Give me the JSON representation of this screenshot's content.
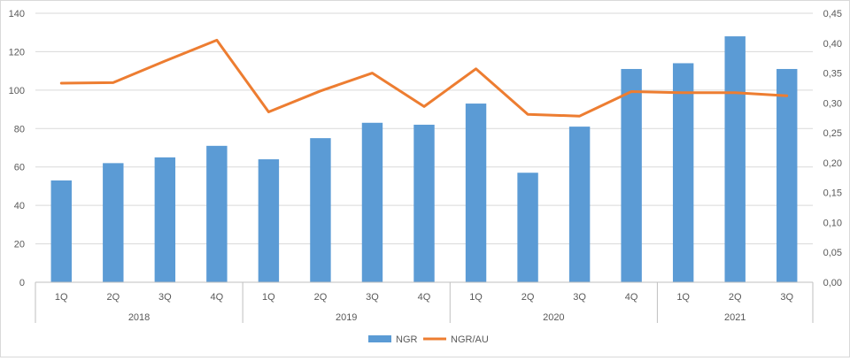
{
  "chart_data": {
    "type": "bar",
    "groups": [
      {
        "label": "2018",
        "quarters": [
          "1Q",
          "2Q",
          "3Q",
          "4Q"
        ]
      },
      {
        "label": "2019",
        "quarters": [
          "1Q",
          "2Q",
          "3Q",
          "4Q"
        ]
      },
      {
        "label": "2020",
        "quarters": [
          "1Q",
          "2Q",
          "3Q",
          "4Q"
        ]
      },
      {
        "label": "2021",
        "quarters": [
          "1Q",
          "2Q",
          "3Q"
        ]
      }
    ],
    "series": [
      {
        "name": "NGR",
        "type": "bar",
        "axis": "left",
        "color": "#5b9bd5",
        "values": [
          53,
          62,
          65,
          71,
          64,
          75,
          83,
          82,
          93,
          57,
          81,
          111,
          114,
          128,
          111
        ]
      },
      {
        "name": "NGR/AU",
        "type": "line",
        "axis": "right",
        "color": "#ed7d31",
        "values": [
          0.333,
          0.334,
          0.37,
          0.405,
          0.285,
          0.32,
          0.35,
          0.294,
          0.357,
          0.281,
          0.278,
          0.319,
          0.317,
          0.317,
          0.312
        ]
      }
    ],
    "y_left": {
      "min": 0,
      "max": 140,
      "ticks": [
        "0",
        "20",
        "40",
        "60",
        "80",
        "100",
        "120",
        "140"
      ]
    },
    "y_right": {
      "min": 0,
      "max": 0.45,
      "ticks": [
        "0,00",
        "0,05",
        "0,10",
        "0,15",
        "0,20",
        "0,25",
        "0,30",
        "0,35",
        "0,40",
        "0,45"
      ]
    },
    "grid": true,
    "legend": "bottom-center"
  }
}
